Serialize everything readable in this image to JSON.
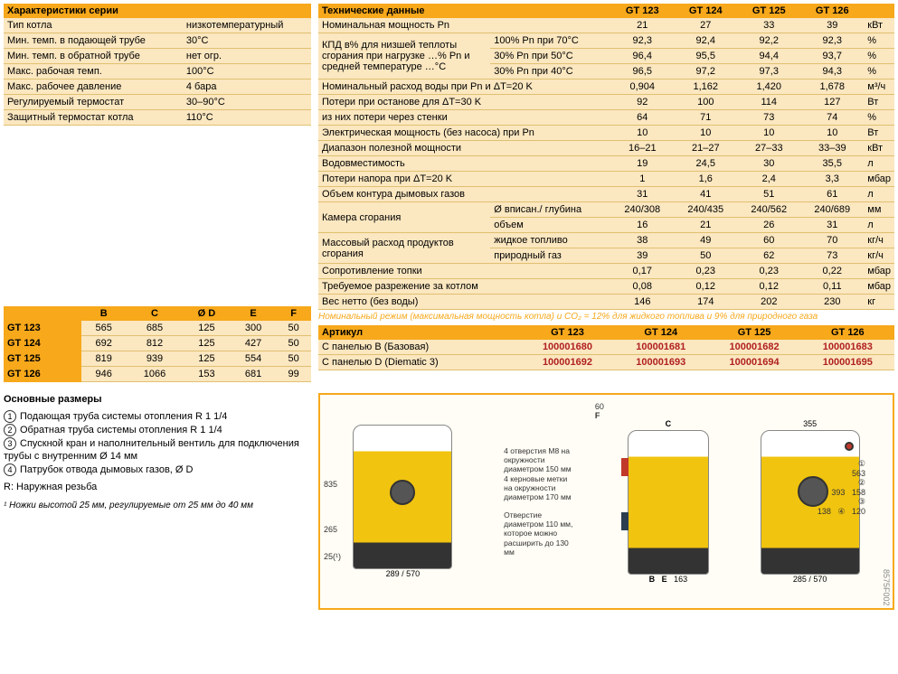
{
  "series": {
    "header": "Характеристики серии",
    "rows": [
      [
        "Тип котла",
        "низкотемпературный"
      ],
      [
        "Мин. темп. в подающей трубе",
        "30°C"
      ],
      [
        "Мин. темп. в обратной трубе",
        "нет огр."
      ],
      [
        "Макс. рабочая темп.",
        "100°C"
      ],
      [
        "Макс. рабочее давление",
        "4 бара"
      ],
      [
        "Регулируемый термостат",
        "30–90°C"
      ],
      [
        "Защитный термостат котла",
        "110°C"
      ]
    ]
  },
  "dims": {
    "cols": [
      "",
      "B",
      "C",
      "Ø D",
      "E",
      "F"
    ],
    "rows": [
      [
        "GT 123",
        "565",
        "685",
        "125",
        "300",
        "50"
      ],
      [
        "GT 124",
        "692",
        "812",
        "125",
        "427",
        "50"
      ],
      [
        "GT 125",
        "819",
        "939",
        "125",
        "554",
        "50"
      ],
      [
        "GT 126",
        "946",
        "1066",
        "153",
        "681",
        "99"
      ]
    ]
  },
  "tech": {
    "header": "Технические данные",
    "models": [
      "GT 123",
      "GT 124",
      "GT 125",
      "GT 126"
    ],
    "unit_blank": "",
    "rows": [
      {
        "l": "Номинальная мощность Pn",
        "v": [
          "21",
          "27",
          "33",
          "39"
        ],
        "u": "кВт"
      },
      {
        "l": "КПД в% для низшей теплоты сгорания при нагрузке …% Pn и средней температуре …°C",
        "sub": "100% Pn при 70°C",
        "v": [
          "92,3",
          "92,4",
          "92,2",
          "92,3"
        ],
        "u": "%",
        "span": 3
      },
      {
        "sub": "30% Pn при 50°C",
        "v": [
          "96,4",
          "95,5",
          "94,4",
          "93,7"
        ],
        "u": "%"
      },
      {
        "sub": "30% Pn при 40°C",
        "v": [
          "96,5",
          "97,2",
          "97,3",
          "94,3"
        ],
        "u": "%"
      },
      {
        "l": "Номинальный расход воды при Pn и ΔT=20 K",
        "v": [
          "0,904",
          "1,162",
          "1,420",
          "1,678"
        ],
        "u": "м³/ч"
      },
      {
        "l": "Потери при останове для ΔT=30 K",
        "v": [
          "92",
          "100",
          "114",
          "127"
        ],
        "u": "Вт"
      },
      {
        "l": "из них потери через стенки",
        "v": [
          "64",
          "71",
          "73",
          "74"
        ],
        "u": "%"
      },
      {
        "l": "Электрическая мощность (без насоса) при Pn",
        "v": [
          "10",
          "10",
          "10",
          "10"
        ],
        "u": "Вт"
      },
      {
        "l": "Диапазон полезной мощности",
        "v": [
          "16–21",
          "21–27",
          "27–33",
          "33–39"
        ],
        "u": "кВт"
      },
      {
        "l": "Водовместимость",
        "v": [
          "19",
          "24,5",
          "30",
          "35,5"
        ],
        "u": "л"
      },
      {
        "l": "Потери напора при ΔT=20 K",
        "v": [
          "1",
          "1,6",
          "2,4",
          "3,3"
        ],
        "u": "мбар"
      },
      {
        "l": "Объем контура дымовых газов",
        "v": [
          "31",
          "41",
          "51",
          "61"
        ],
        "u": "л"
      },
      {
        "l": "Камера сгорания",
        "sub": "Ø вписан./ глубина",
        "v": [
          "240/308",
          "240/435",
          "240/562",
          "240/689"
        ],
        "u": "мм",
        "span": 2
      },
      {
        "sub": "объем",
        "v": [
          "16",
          "21",
          "26",
          "31"
        ],
        "u": "л"
      },
      {
        "l": "Массовый расход продуктов сгорания",
        "sub": "жидкое топливо",
        "v": [
          "38",
          "49",
          "60",
          "70"
        ],
        "u": "кг/ч",
        "span": 2
      },
      {
        "sub": "природный газ",
        "v": [
          "39",
          "50",
          "62",
          "73"
        ],
        "u": "кг/ч"
      },
      {
        "l": "Сопротивление топки",
        "v": [
          "0,17",
          "0,23",
          "0,23",
          "0,22"
        ],
        "u": "мбар"
      },
      {
        "l": "Требуемое разрежение за котлом",
        "v": [
          "0,08",
          "0,12",
          "0,12",
          "0,11"
        ],
        "u": "мбар"
      },
      {
        "l": "Вес нетто (без воды)",
        "v": [
          "146",
          "174",
          "202",
          "230"
        ],
        "u": "кг"
      }
    ],
    "note": "Номинальный режим (максимальная мощность котла) и CO₂ = 12% для жидкого топлива и 9% для природного газа"
  },
  "articles": {
    "header": "Артикул",
    "models": [
      "GT 123",
      "GT 124",
      "GT 125",
      "GT 126"
    ],
    "rows": [
      [
        "С панелью B (Базовая)",
        "100001680",
        "100001681",
        "100001682",
        "100001683"
      ],
      [
        "С панелью D (Diematic 3)",
        "100001692",
        "100001693",
        "100001694",
        "100001695"
      ]
    ]
  },
  "legend": {
    "title": "Основные размеры",
    "items": [
      "Подающая труба системы отопления R 1 1/4",
      "Обратная труба системы отопления R 1 1/4",
      "Спускной кран и наполнительный вентиль для подключения трубы с внутренним Ø 14 мм",
      "Патрубок отвода дымовых газов, Ø D"
    ],
    "r_label": "R:  Наружная резьба",
    "footnote": "¹ Ножки высотой 25 мм, регулируемые от 25 мм до 40 мм"
  },
  "diagram": {
    "notes_left": "4 отверстия M8 на окружности диаметром 150 мм\n4 керновые метки на окружности диаметром 170 мм",
    "notes_center": "Отверстие диаметром 110 мм, которое можно расширить до 130 мм",
    "dims": {
      "h835": "835",
      "h265": "265",
      "h25": "25(¹)",
      "w289": "289",
      "w570": "570",
      "B": "B",
      "C": "C",
      "E": "E",
      "F": "F",
      "w163": "163",
      "w355": "355",
      "h563": "563",
      "h393": "393",
      "w158": "158",
      "h138": "138",
      "w285": "285",
      "h120": "120",
      "h60": "60"
    },
    "refcode": "8575F002"
  },
  "colors": {
    "orange": "#f7a81b",
    "cream": "#fbe7c0",
    "red": "#b02020"
  }
}
